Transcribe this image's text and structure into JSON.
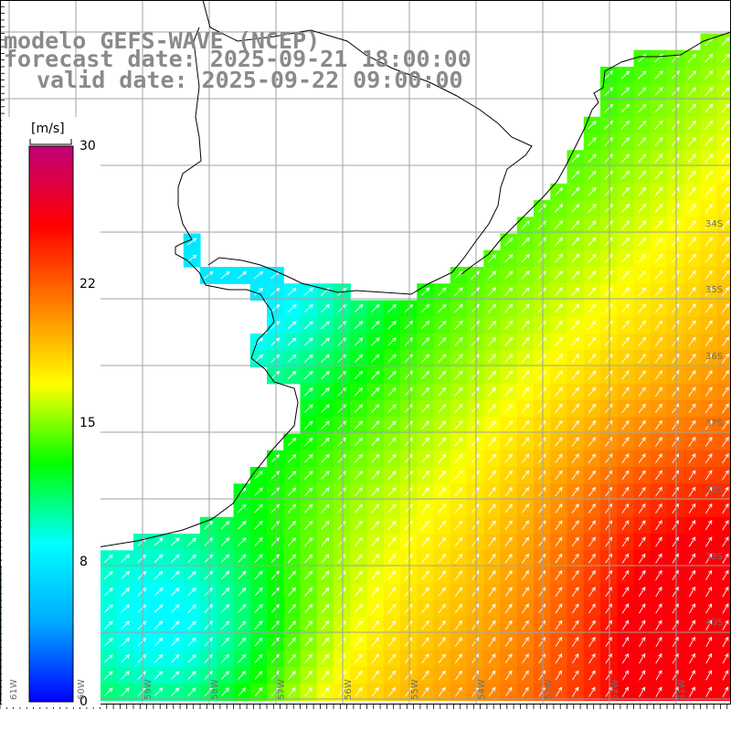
{
  "title": {
    "line1": "modelo GEFS-WAVE (NCEP)",
    "line2": "forecast date: 2025-09-21 18:00:00",
    "line3": "valid date: 2025-09-22 09:00:00"
  },
  "colorbar": {
    "unit": "[m/s]",
    "ticks": [
      "30",
      "22",
      "15",
      "8",
      "0"
    ],
    "min": 0,
    "max": 30,
    "colors": [
      "#0000ff",
      "#00aaff",
      "#00ffff",
      "#00ff00",
      "#ffff00",
      "#ff8000",
      "#ff0000",
      "#c0007a"
    ]
  },
  "lat_labels": [
    "34S",
    "35S",
    "36S",
    "37S",
    "38S",
    "39S",
    "40S"
  ],
  "lon_labels": [
    "61W",
    "60W",
    "59W",
    "58W",
    "57W",
    "56W",
    "55W",
    "54W",
    "53W",
    "52W",
    "51W"
  ],
  "colors": {
    "title_gray": "#8a8a8a",
    "land": "#ffffff",
    "grid": "#a0a0a0",
    "coast": "#000000",
    "arrow": "#ffffff"
  }
}
